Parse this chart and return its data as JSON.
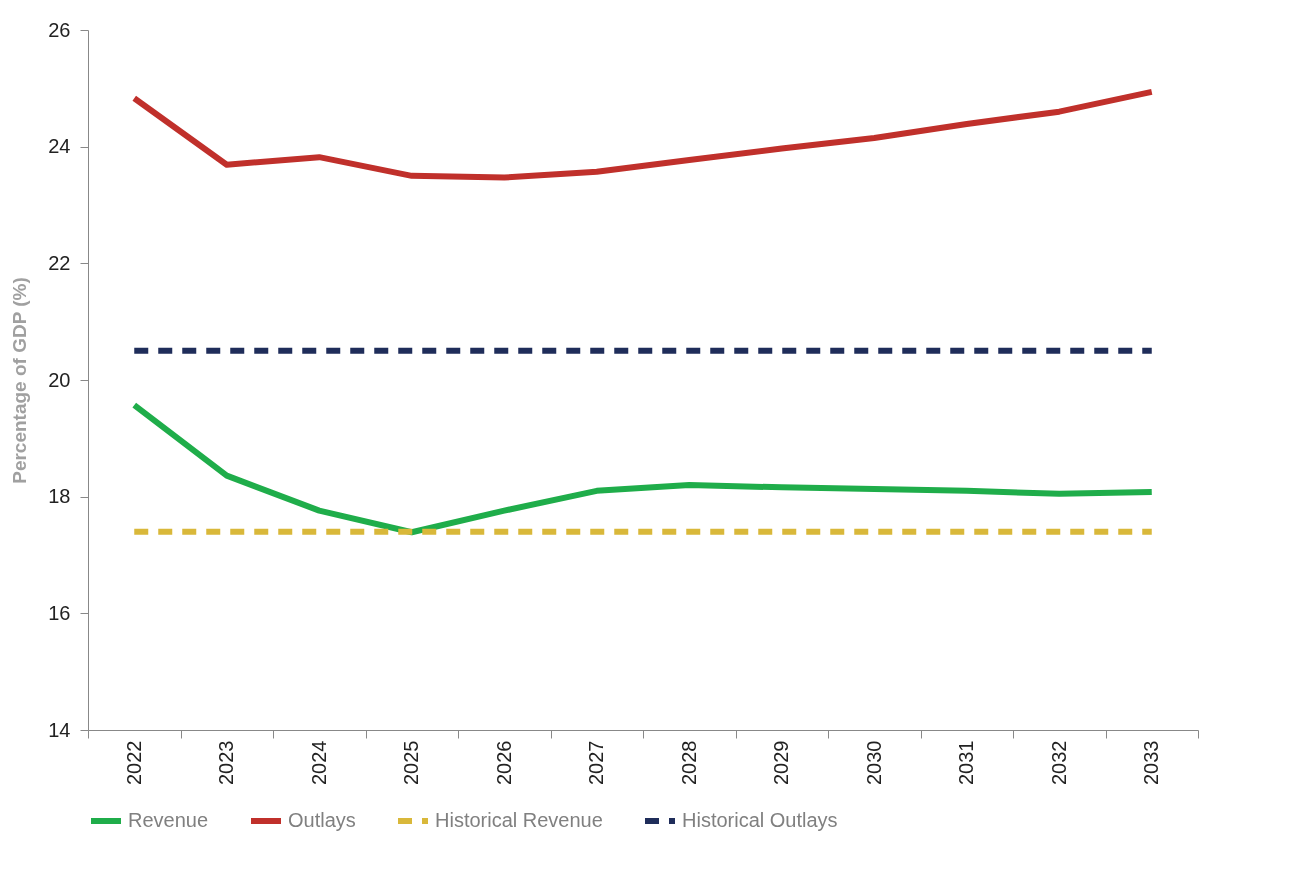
{
  "chart_data": {
    "type": "line",
    "ylabel": "Percentage of GDP (%)",
    "categories": [
      "2022",
      "2023",
      "2024",
      "2025",
      "2026",
      "2027",
      "2028",
      "2029",
      "2030",
      "2031",
      "2032",
      "2033"
    ],
    "series": [
      {
        "name": "Revenue",
        "color": "#1fad4a",
        "line_style": "solid",
        "values": [
          19.57,
          18.36,
          17.76,
          17.39,
          17.76,
          18.1,
          18.2,
          18.16,
          18.13,
          18.1,
          18.05,
          18.08
        ]
      },
      {
        "name": "Outlays",
        "color": "#c0302b",
        "line_style": "solid",
        "values": [
          24.83,
          23.69,
          23.82,
          23.5,
          23.47,
          23.57,
          23.77,
          23.97,
          24.15,
          24.39,
          24.6,
          24.94
        ]
      },
      {
        "name": "Historical Revenue",
        "color": "#d9b83a",
        "line_style": "dashed",
        "values": [
          17.4,
          17.4,
          17.4,
          17.4,
          17.4,
          17.4,
          17.4,
          17.4,
          17.4,
          17.4,
          17.4,
          17.4
        ]
      },
      {
        "name": "Historical Outlays",
        "color": "#1f2d5a",
        "line_style": "dashed",
        "values": [
          20.5,
          20.5,
          20.5,
          20.5,
          20.5,
          20.5,
          20.5,
          20.5,
          20.5,
          20.5,
          20.5,
          20.5
        ]
      }
    ],
    "ylim": [
      14,
      26
    ],
    "yticks": [
      14,
      16,
      18,
      20,
      22,
      24,
      26
    ],
    "grid": false,
    "legend": "bottom",
    "marker": "none"
  }
}
